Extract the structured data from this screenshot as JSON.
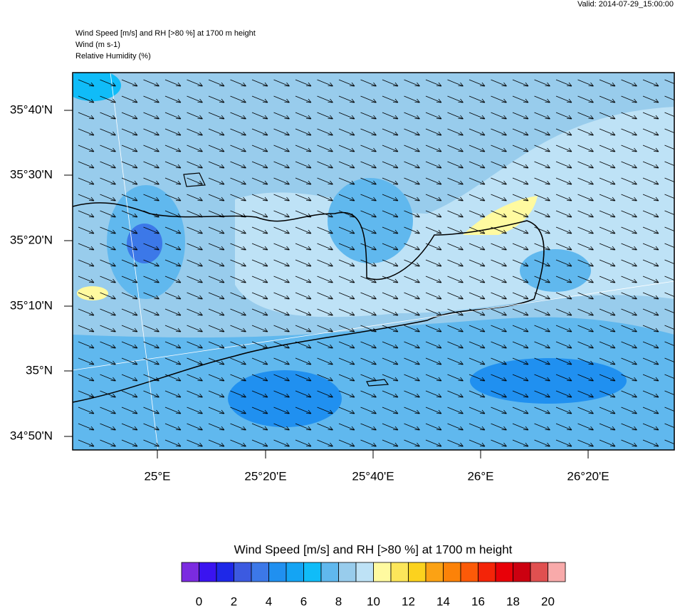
{
  "header": {
    "valid": "Valid: 2014-07-29_15:00:00",
    "lines": [
      "Wind Speed [m/s] and RH [>80 %] at 1700 m height",
      "Wind   (m s-1)",
      "Relative Humidity   (%)"
    ]
  },
  "map": {
    "lat_labels": [
      "35°40'N",
      "35°30'N",
      "35°20'N",
      "35°10'N",
      "35°N",
      "34°50'N"
    ],
    "lon_labels": [
      "25°E",
      "25°20'E",
      "25°40'E",
      "26°E",
      "26°20'E"
    ]
  },
  "colorbar": {
    "title": "Wind Speed [m/s] and RH [>80 %] at 1700 m height",
    "colors": [
      "#7b2be0",
      "#3a14f0",
      "#1e28e8",
      "#3c5ae0",
      "#3c78e8",
      "#2090f0",
      "#14a4f4",
      "#10bcf8",
      "#60b8ee",
      "#98ccec",
      "#bee2f6",
      "#fffaa0",
      "#fce65a",
      "#fcd21e",
      "#fca214",
      "#fc8208",
      "#fc5a08",
      "#f42408",
      "#e80008",
      "#cc0010",
      "#e05050",
      "#f8aaaa"
    ],
    "labels": [
      "0",
      "2",
      "4",
      "6",
      "8",
      "10",
      "12",
      "14",
      "16",
      "18",
      "20"
    ]
  }
}
